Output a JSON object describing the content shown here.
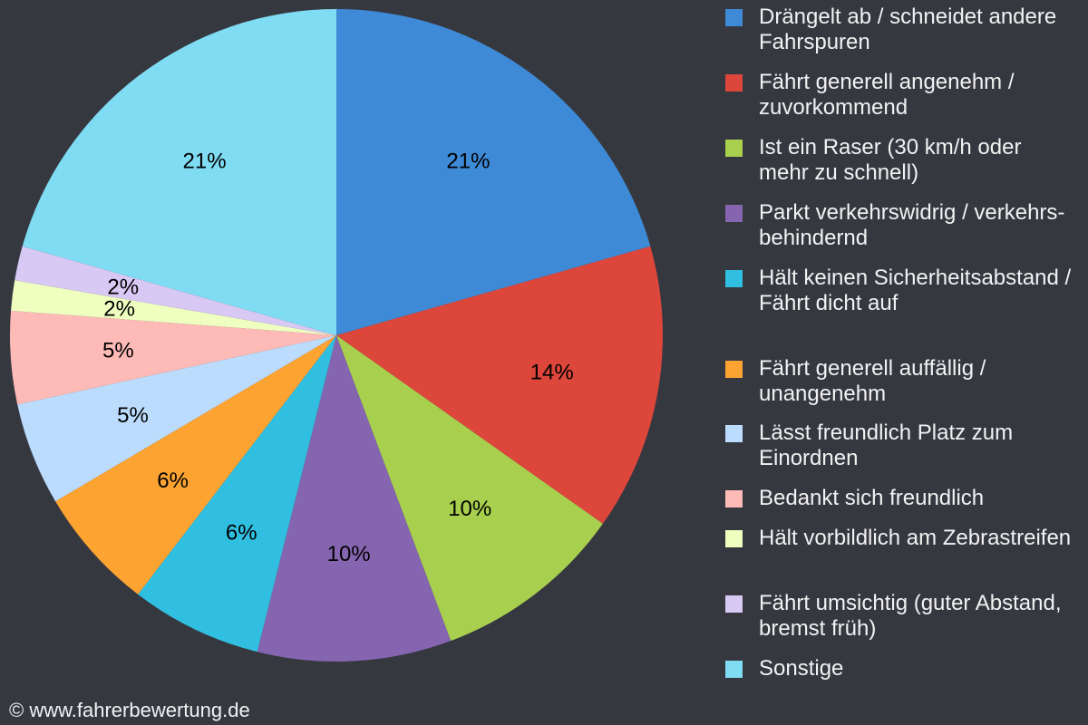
{
  "chart_data": {
    "type": "pie",
    "start": "top, clockwise",
    "slices": [
      {
        "label": "Drängelt ab / schneidet andere Fahrspuren",
        "value": 20.6,
        "data_label": "21%",
        "color": "#3e8ad6"
      },
      {
        "label": "Fährt generell angenehm / zuvorkommend",
        "value": 14.2,
        "data_label": "14%",
        "color": "#dc463b"
      },
      {
        "label": "Ist ein Raser (30 km/h oder mehr zu schnell)",
        "value": 9.5,
        "data_label": "10%",
        "color": "#a8cf4e"
      },
      {
        "label": "Parkt verkehrswidrig / verkehrs-behindernd",
        "value": 9.6,
        "data_label": "10%",
        "color": "#8564b0"
      },
      {
        "label": "Hält keinen Sicherheitsabstand / Fährt dicht auf",
        "value": 6.5,
        "data_label": "6%",
        "color": "#30bfe0"
      },
      {
        "label": "Fährt generell auffällig / unangenehm",
        "value": 6.1,
        "data_label": "6%",
        "color": "#fda332"
      },
      {
        "label": "Lässt freundlich Platz zum Einordnen",
        "value": 5.1,
        "data_label": "5%",
        "color": "#bcdcfd"
      },
      {
        "label": "Bedankt sich freundlich",
        "value": 4.6,
        "data_label": "5%",
        "color": "#fdbab6"
      },
      {
        "label": "Hält vorbildlich am Zebrastreifen",
        "value": 1.5,
        "data_label": "2%",
        "color": "#eeffc0"
      },
      {
        "label": "Fährt umsichtig (guter Abstand, bremst früh)",
        "value": 1.7,
        "data_label": "2%",
        "color": "#d8c8f4"
      },
      {
        "label": "Sonstige",
        "value": 20.6,
        "data_label": "21%",
        "color": "#7fdcf3"
      }
    ],
    "legend_position": "right"
  },
  "background": "#363840",
  "copyright": "© www.fahrerbewertung.de"
}
